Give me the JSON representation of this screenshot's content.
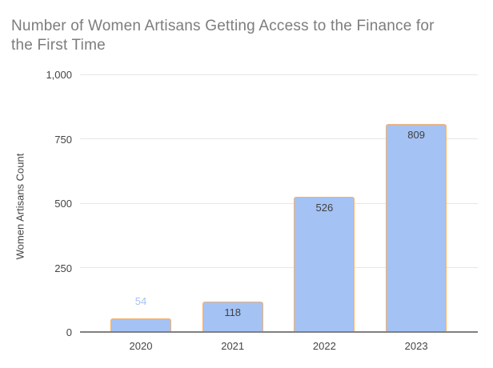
{
  "chart_data": {
    "type": "bar",
    "title": "Number of Women Artisans Getting Access to the Finance for the First Time",
    "xlabel": "",
    "ylabel": "Women Artisans Count",
    "categories": [
      "2020",
      "2021",
      "2022",
      "2023"
    ],
    "values": [
      54,
      118,
      526,
      809
    ],
    "value_labels": [
      "54",
      "118",
      "526",
      "809"
    ],
    "value_label_placement": [
      "above",
      "inside",
      "inside",
      "inside"
    ],
    "ylim": [
      0,
      1000
    ],
    "ytick_values": [
      0,
      250,
      500,
      750,
      1000
    ],
    "ytick_labels": [
      "0",
      "250",
      "500",
      "750",
      "1,000"
    ],
    "grid": true,
    "legend": "none",
    "colors": {
      "background": "#ffffff",
      "bar_fill": "#a4c2f4",
      "bar_border": "#f6b26b",
      "title": "#7d7d7d",
      "tick_label": "#444444",
      "axis_title": "#444444",
      "gridline": "#e6e6e6",
      "baseline": "#808080",
      "value_label_above": "#a4c2f4",
      "value_label_inside": "#404040"
    }
  }
}
